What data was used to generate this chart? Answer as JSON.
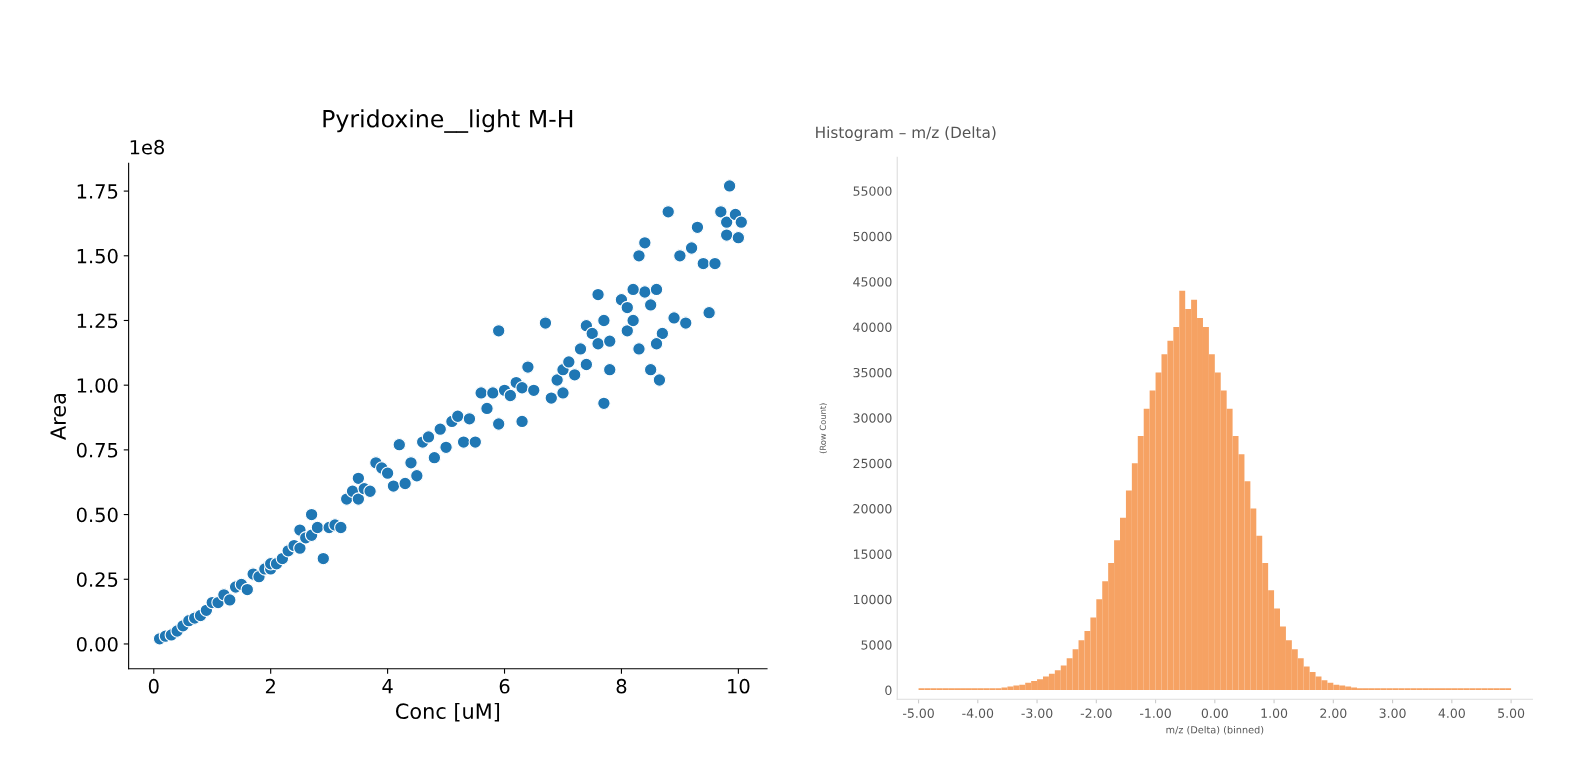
{
  "chart_data": [
    {
      "type": "scatter",
      "title": "Pyridoxine__light M-H",
      "xlabel": "Conc [uM]",
      "ylabel": "Area",
      "annotations": [
        "1e8"
      ],
      "x": [
        0.1,
        0.2,
        0.3,
        0.4,
        0.5,
        0.6,
        0.7,
        0.8,
        0.9,
        1.0,
        1.1,
        1.2,
        1.3,
        1.4,
        1.5,
        1.6,
        1.7,
        1.8,
        1.9,
        2.0,
        2.0,
        2.1,
        2.2,
        2.3,
        2.4,
        2.5,
        2.5,
        2.6,
        2.7,
        2.7,
        2.8,
        2.9,
        3.0,
        3.1,
        3.2,
        3.3,
        3.4,
        3.5,
        3.5,
        3.6,
        3.7,
        3.8,
        3.9,
        4.0,
        4.1,
        4.2,
        4.3,
        4.4,
        4.5,
        4.6,
        4.7,
        4.8,
        4.9,
        5.0,
        5.1,
        5.2,
        5.3,
        5.4,
        5.5,
        5.6,
        5.7,
        5.8,
        5.9,
        6.0,
        5.9,
        6.1,
        6.2,
        6.3,
        6.3,
        6.4,
        6.5,
        6.7,
        6.8,
        6.9,
        7.0,
        7.0,
        7.1,
        7.2,
        7.3,
        7.4,
        7.4,
        7.5,
        7.6,
        7.7,
        7.8,
        7.6,
        8.0,
        8.1,
        8.2,
        7.8,
        8.3,
        8.4,
        8.5,
        8.6,
        8.7,
        8.3,
        8.4,
        8.2,
        8.1,
        8.8,
        9.0,
        9.2,
        9.3,
        9.4,
        9.5,
        9.6,
        9.7,
        9.8,
        9.8,
        9.85,
        9.95,
        10.0,
        10.05,
        8.5,
        8.65,
        8.6,
        8.9,
        9.1,
        7.7
      ],
      "values": [
        0.02,
        0.03,
        0.035,
        0.05,
        0.07,
        0.09,
        0.1,
        0.11,
        0.13,
        0.16,
        0.16,
        0.19,
        0.17,
        0.22,
        0.23,
        0.21,
        0.27,
        0.26,
        0.29,
        0.29,
        0.31,
        0.31,
        0.33,
        0.36,
        0.38,
        0.37,
        0.44,
        0.41,
        0.42,
        0.5,
        0.45,
        0.33,
        0.45,
        0.46,
        0.45,
        0.56,
        0.59,
        0.56,
        0.64,
        0.6,
        0.59,
        0.7,
        0.68,
        0.66,
        0.61,
        0.77,
        0.62,
        0.7,
        0.65,
        0.78,
        0.8,
        0.72,
        0.83,
        0.76,
        0.86,
        0.88,
        0.78,
        0.87,
        0.78,
        0.97,
        0.91,
        0.97,
        0.85,
        0.98,
        1.21,
        0.96,
        1.01,
        0.86,
        0.99,
        1.07,
        0.98,
        1.24,
        0.95,
        1.02,
        0.97,
        1.06,
        1.09,
        1.04,
        1.14,
        1.08,
        1.23,
        1.2,
        1.16,
        1.25,
        1.17,
        1.35,
        1.33,
        1.21,
        1.25,
        1.06,
        1.14,
        1.36,
        1.31,
        1.37,
        1.2,
        1.5,
        1.55,
        1.37,
        1.3,
        1.67,
        1.5,
        1.53,
        1.61,
        1.47,
        1.28,
        1.47,
        1.67,
        1.63,
        1.58,
        1.77,
        1.66,
        1.57,
        1.63,
        1.06,
        1.02,
        1.16,
        1.26,
        1.24,
        0.93
      ],
      "color": "#1f77b4",
      "marker": "circle",
      "grid": false,
      "xlim": [
        -0.43,
        10.49
      ],
      "xticks": [
        0,
        2,
        4,
        6,
        8,
        10
      ],
      "ylim": [
        -0.096,
        1.857
      ],
      "yticks": [
        {
          "value": 0,
          "label": "0.00"
        },
        {
          "value": 0.25,
          "label": "0.25"
        },
        {
          "value": 0.5,
          "label": "0.50"
        },
        {
          "value": 0.75,
          "label": "0.75"
        },
        {
          "value": 1.0,
          "label": "1.00"
        },
        {
          "value": 1.25,
          "label": "1.25"
        },
        {
          "value": 1.5,
          "label": "1.50"
        },
        {
          "value": 1.75,
          "label": "1.75"
        }
      ]
    },
    {
      "type": "histogram",
      "title": "Histogram – m/z (Delta)",
      "xlabel": "m/z (Delta) (binned)",
      "ylabel": "(Row Count)",
      "color": "#f6a263",
      "grid": false,
      "bins": [
        -5.0,
        -4.9,
        -4.8,
        -4.7,
        -4.6,
        -4.5,
        -4.4,
        -4.3,
        -4.2,
        -4.1,
        -4.0,
        -3.9,
        -3.8,
        -3.7,
        -3.6,
        -3.5,
        -3.4,
        -3.3,
        -3.2,
        -3.1,
        -3.0,
        -2.9,
        -2.8,
        -2.7,
        -2.6,
        -2.5,
        -2.4,
        -2.3,
        -2.2,
        -2.1,
        -2.0,
        -1.9,
        -1.8,
        -1.7,
        -1.6,
        -1.5,
        -1.4,
        -1.3,
        -1.2,
        -1.1,
        -1.0,
        -0.9,
        -0.8,
        -0.7,
        -0.6,
        -0.5,
        -0.4,
        -0.3,
        -0.2,
        -0.1,
        0.0,
        0.1,
        0.2,
        0.3,
        0.4,
        0.5,
        0.6,
        0.7,
        0.8,
        0.9,
        1.0,
        1.1,
        1.2,
        1.3,
        1.4,
        1.5,
        1.6,
        1.7,
        1.8,
        1.9,
        2.0,
        2.1,
        2.2,
        2.3,
        2.4,
        2.5,
        2.6,
        2.7,
        2.8,
        2.9,
        3.0,
        3.1,
        3.2,
        3.3,
        3.4,
        3.5,
        3.6,
        3.7,
        3.8,
        3.9,
        4.0,
        4.1,
        4.2,
        4.3,
        4.4,
        4.5,
        4.6,
        4.7,
        4.8,
        4.9,
        5.0
      ],
      "values": [
        200,
        200,
        200,
        200,
        200,
        200,
        200,
        200,
        200,
        200,
        200,
        200,
        200,
        200,
        300,
        400,
        500,
        600,
        800,
        1000,
        1200,
        1500,
        1800,
        2200,
        2700,
        3500,
        4500,
        5500,
        6500,
        8000,
        10000,
        12000,
        14000,
        16500,
        19000,
        22000,
        25000,
        28000,
        31000,
        33000,
        35000,
        37000,
        38500,
        40000,
        44000,
        42000,
        43000,
        41000,
        40000,
        37000,
        35000,
        33000,
        31000,
        28000,
        26000,
        23000,
        20000,
        17000,
        14000,
        11000,
        9000,
        7000,
        5500,
        4500,
        3500,
        2600,
        2000,
        1500,
        1100,
        800,
        600,
        500,
        400,
        300,
        200,
        200,
        200,
        200,
        200,
        200,
        200,
        200,
        200,
        200,
        200,
        200,
        200,
        200,
        200,
        200,
        200,
        200,
        200,
        200,
        200,
        200,
        200,
        200,
        200,
        200
      ],
      "xlim": [
        -5.36,
        5.36
      ],
      "xticks": [
        {
          "value": -5,
          "label": "-5.00"
        },
        {
          "value": -4,
          "label": "-4.00"
        },
        {
          "value": -3,
          "label": "-3.00"
        },
        {
          "value": -2,
          "label": "-2.00"
        },
        {
          "value": -1,
          "label": "-1.00"
        },
        {
          "value": 0,
          "label": "0.00"
        },
        {
          "value": 1,
          "label": "1.00"
        },
        {
          "value": 2,
          "label": "2.00"
        },
        {
          "value": 3,
          "label": "3.00"
        },
        {
          "value": 4,
          "label": "4.00"
        },
        {
          "value": 5,
          "label": "5.00"
        }
      ],
      "ylim": [
        -1000,
        58700
      ],
      "yticks": [
        0,
        5000,
        10000,
        15000,
        20000,
        25000,
        30000,
        35000,
        40000,
        45000,
        50000,
        55000
      ]
    }
  ]
}
